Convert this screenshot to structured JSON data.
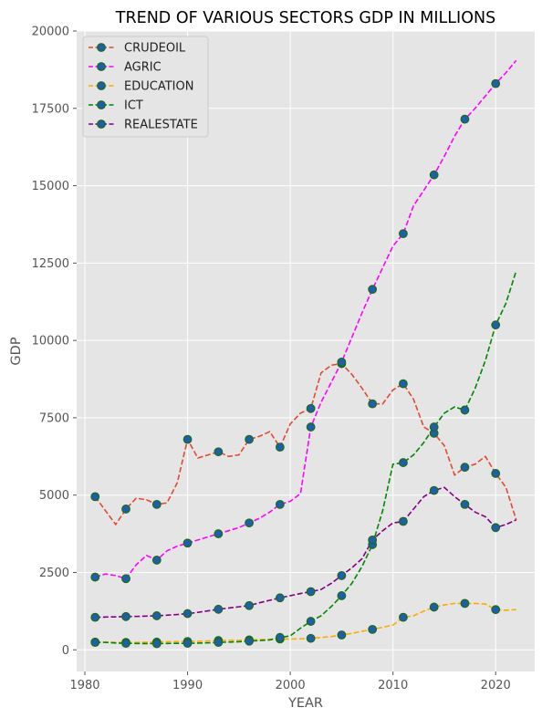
{
  "chart_data": {
    "type": "line",
    "title": "TREND OF VARIOUS SECTORS GDP IN MILLIONS",
    "xlabel": "YEAR",
    "ylabel": "GDP",
    "xlim": [
      1979.2,
      2023.8
    ],
    "ylim": [
      -700,
      20000
    ],
    "xticks": [
      1980,
      1990,
      2000,
      2010,
      2020
    ],
    "yticks": [
      0,
      2500,
      5000,
      7500,
      10000,
      12500,
      15000,
      17500,
      20000
    ],
    "grid": true,
    "legend_position": "top-left",
    "marker_every": 3,
    "marker_style": {
      "face": "#1f5fa8",
      "edge": "#1a6b1a"
    },
    "series": [
      {
        "name": "CRUDEOIL",
        "color": "#e24a33",
        "points": [
          [
            1981,
            4950
          ],
          [
            1982,
            4500
          ],
          [
            1983,
            4050
          ],
          [
            1984,
            4550
          ],
          [
            1985,
            4900
          ],
          [
            1986,
            4850
          ],
          [
            1987,
            4700
          ],
          [
            1988,
            4750
          ],
          [
            1989,
            5400
          ],
          [
            1990,
            6800
          ],
          [
            1991,
            6200
          ],
          [
            1992,
            6300
          ],
          [
            1993,
            6400
          ],
          [
            1994,
            6250
          ],
          [
            1995,
            6300
          ],
          [
            1996,
            6800
          ],
          [
            1997,
            6900
          ],
          [
            1998,
            7050
          ],
          [
            1999,
            6550
          ],
          [
            2000,
            7300
          ],
          [
            2001,
            7650
          ],
          [
            2002,
            7800
          ],
          [
            2003,
            8950
          ],
          [
            2004,
            9200
          ],
          [
            2005,
            9250
          ],
          [
            2006,
            8900
          ],
          [
            2007,
            8450
          ],
          [
            2008,
            7950
          ],
          [
            2009,
            7950
          ],
          [
            2010,
            8400
          ],
          [
            2011,
            8600
          ],
          [
            2012,
            8100
          ],
          [
            2013,
            7200
          ],
          [
            2014,
            7000
          ],
          [
            2015,
            6600
          ],
          [
            2016,
            5650
          ],
          [
            2017,
            5900
          ],
          [
            2018,
            6000
          ],
          [
            2019,
            6250
          ],
          [
            2020,
            5700
          ],
          [
            2021,
            5250
          ],
          [
            2022,
            4200
          ]
        ]
      },
      {
        "name": "AGRIC",
        "color": "#ff00ff",
        "points": [
          [
            1981,
            2350
          ],
          [
            1982,
            2450
          ],
          [
            1983,
            2400
          ],
          [
            1984,
            2300
          ],
          [
            1985,
            2750
          ],
          [
            1986,
            3050
          ],
          [
            1987,
            2900
          ],
          [
            1988,
            3200
          ],
          [
            1989,
            3350
          ],
          [
            1990,
            3450
          ],
          [
            1991,
            3550
          ],
          [
            1992,
            3650
          ],
          [
            1993,
            3750
          ],
          [
            1994,
            3850
          ],
          [
            1995,
            3950
          ],
          [
            1996,
            4100
          ],
          [
            1997,
            4250
          ],
          [
            1998,
            4450
          ],
          [
            1999,
            4700
          ],
          [
            2000,
            4800
          ],
          [
            2001,
            5050
          ],
          [
            2002,
            7200
          ],
          [
            2003,
            8000
          ],
          [
            2004,
            8650
          ],
          [
            2005,
            9300
          ],
          [
            2006,
            10100
          ],
          [
            2007,
            10900
          ],
          [
            2008,
            11650
          ],
          [
            2009,
            12350
          ],
          [
            2010,
            13050
          ],
          [
            2011,
            13450
          ],
          [
            2012,
            14350
          ],
          [
            2013,
            14850
          ],
          [
            2014,
            15350
          ],
          [
            2015,
            15950
          ],
          [
            2016,
            16600
          ],
          [
            2017,
            17150
          ],
          [
            2018,
            17500
          ],
          [
            2019,
            17900
          ],
          [
            2020,
            18300
          ],
          [
            2021,
            18650
          ],
          [
            2022,
            19050
          ]
        ]
      },
      {
        "name": "EDUCATION",
        "color": "#ffaa00",
        "points": [
          [
            1981,
            250
          ],
          [
            1982,
            250
          ],
          [
            1983,
            240
          ],
          [
            1984,
            240
          ],
          [
            1985,
            240
          ],
          [
            1986,
            245
          ],
          [
            1987,
            250
          ],
          [
            1988,
            260
          ],
          [
            1989,
            265
          ],
          [
            1990,
            270
          ],
          [
            1991,
            275
          ],
          [
            1992,
            285
          ],
          [
            1993,
            300
          ],
          [
            1994,
            305
          ],
          [
            1995,
            310
          ],
          [
            1996,
            320
          ],
          [
            1997,
            330
          ],
          [
            1998,
            340
          ],
          [
            1999,
            350
          ],
          [
            2000,
            350
          ],
          [
            2001,
            355
          ],
          [
            2002,
            370
          ],
          [
            2003,
            400
          ],
          [
            2004,
            430
          ],
          [
            2005,
            480
          ],
          [
            2006,
            530
          ],
          [
            2007,
            600
          ],
          [
            2008,
            660
          ],
          [
            2009,
            730
          ],
          [
            2010,
            800
          ],
          [
            2011,
            1050
          ],
          [
            2012,
            1100
          ],
          [
            2013,
            1250
          ],
          [
            2014,
            1380
          ],
          [
            2015,
            1450
          ],
          [
            2016,
            1500
          ],
          [
            2017,
            1500
          ],
          [
            2018,
            1500
          ],
          [
            2019,
            1480
          ],
          [
            2020,
            1300
          ],
          [
            2021,
            1280
          ],
          [
            2022,
            1300
          ]
        ]
      },
      {
        "name": "ICT",
        "color": "#008800",
        "points": [
          [
            1981,
            240
          ],
          [
            1982,
            240
          ],
          [
            1983,
            220
          ],
          [
            1984,
            210
          ],
          [
            1985,
            205
          ],
          [
            1986,
            200
          ],
          [
            1987,
            200
          ],
          [
            1988,
            205
          ],
          [
            1989,
            210
          ],
          [
            1990,
            210
          ],
          [
            1991,
            215
          ],
          [
            1992,
            225
          ],
          [
            1993,
            240
          ],
          [
            1994,
            250
          ],
          [
            1995,
            260
          ],
          [
            1996,
            280
          ],
          [
            1997,
            300
          ],
          [
            1998,
            320
          ],
          [
            1999,
            400
          ],
          [
            2000,
            450
          ],
          [
            2001,
            700
          ],
          [
            2002,
            920
          ],
          [
            2003,
            1100
          ],
          [
            2004,
            1400
          ],
          [
            2005,
            1750
          ],
          [
            2006,
            2150
          ],
          [
            2007,
            2700
          ],
          [
            2008,
            3400
          ],
          [
            2009,
            4500
          ],
          [
            2010,
            6000
          ],
          [
            2011,
            6050
          ],
          [
            2012,
            6300
          ],
          [
            2013,
            6700
          ],
          [
            2014,
            7200
          ],
          [
            2015,
            7650
          ],
          [
            2016,
            7850
          ],
          [
            2017,
            7750
          ],
          [
            2018,
            8450
          ],
          [
            2019,
            9350
          ],
          [
            2020,
            10500
          ],
          [
            2021,
            11200
          ],
          [
            2022,
            12250
          ]
        ]
      },
      {
        "name": "REALESTATE",
        "color": "#800080",
        "points": [
          [
            1981,
            1050
          ],
          [
            1982,
            1060
          ],
          [
            1983,
            1065
          ],
          [
            1984,
            1075
          ],
          [
            1985,
            1080
          ],
          [
            1986,
            1090
          ],
          [
            1987,
            1100
          ],
          [
            1988,
            1120
          ],
          [
            1989,
            1140
          ],
          [
            1990,
            1170
          ],
          [
            1991,
            1210
          ],
          [
            1992,
            1260
          ],
          [
            1993,
            1310
          ],
          [
            1994,
            1350
          ],
          [
            1995,
            1390
          ],
          [
            1996,
            1430
          ],
          [
            1997,
            1520
          ],
          [
            1998,
            1600
          ],
          [
            1999,
            1680
          ],
          [
            2000,
            1750
          ],
          [
            2001,
            1820
          ],
          [
            2002,
            1880
          ],
          [
            2003,
            1950
          ],
          [
            2004,
            2150
          ],
          [
            2005,
            2400
          ],
          [
            2006,
            2650
          ],
          [
            2007,
            2950
          ],
          [
            2008,
            3550
          ],
          [
            2009,
            3850
          ],
          [
            2010,
            4100
          ],
          [
            2011,
            4150
          ],
          [
            2012,
            4550
          ],
          [
            2013,
            4950
          ],
          [
            2014,
            5150
          ],
          [
            2015,
            5250
          ],
          [
            2016,
            4950
          ],
          [
            2017,
            4700
          ],
          [
            2018,
            4450
          ],
          [
            2019,
            4300
          ],
          [
            2020,
            3950
          ],
          [
            2021,
            4050
          ],
          [
            2022,
            4200
          ]
        ]
      }
    ]
  }
}
